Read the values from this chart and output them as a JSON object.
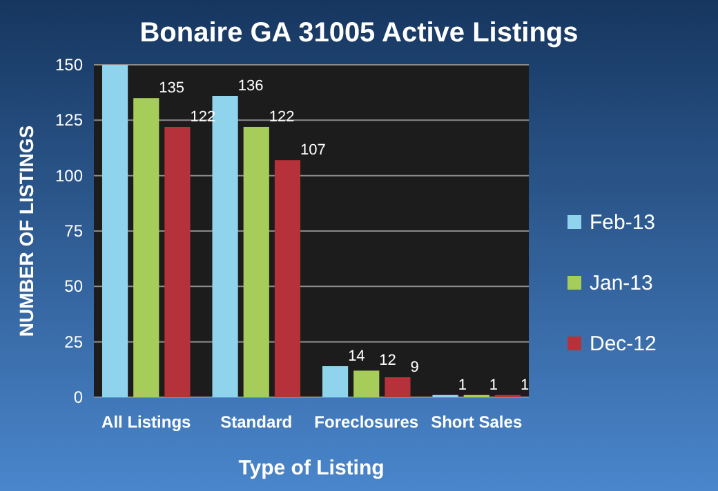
{
  "chart_data": {
    "type": "bar",
    "title": "Bonaire GA 31005 Active Listings",
    "xlabel": "Type of Listing",
    "ylabel": "NUMBER OF LISTINGS",
    "categories": [
      "All Listings",
      "Standard",
      "Foreclosures",
      "Short Sales"
    ],
    "series": [
      {
        "name": "Feb-13",
        "color": "#8fd3ec",
        "values": [
          150,
          136,
          14,
          1
        ],
        "value_labels": [
          null,
          "136",
          "14",
          "1"
        ]
      },
      {
        "name": "Jan-13",
        "color": "#a6cc5a",
        "values": [
          135,
          122,
          12,
          1
        ],
        "value_labels": [
          "135",
          "122",
          "12",
          "1"
        ]
      },
      {
        "name": "Dec-12",
        "color": "#b5323a",
        "values": [
          122,
          107,
          9,
          1
        ],
        "value_labels": [
          "122",
          "107",
          "9",
          "1"
        ]
      }
    ],
    "ylim": [
      0,
      150
    ],
    "yticks": [
      0,
      25,
      50,
      75,
      100,
      125,
      150
    ],
    "grid": "y",
    "legend": "right"
  }
}
